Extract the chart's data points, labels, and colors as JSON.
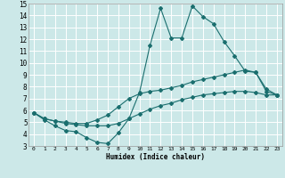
{
  "xlabel": "Humidex (Indice chaleur)",
  "xlim": [
    -0.5,
    23.5
  ],
  "ylim": [
    3,
    15
  ],
  "xticks": [
    0,
    1,
    2,
    3,
    4,
    5,
    6,
    7,
    8,
    9,
    10,
    11,
    12,
    13,
    14,
    15,
    16,
    17,
    18,
    19,
    20,
    21,
    22,
    23
  ],
  "yticks": [
    3,
    4,
    5,
    6,
    7,
    8,
    9,
    10,
    11,
    12,
    13,
    14,
    15
  ],
  "bg_color": "#cce8e8",
  "line_color": "#1a6e6e",
  "grid_color": "#ffffff",
  "line1_x": [
    0,
    1,
    2,
    3,
    4,
    5,
    6,
    7,
    8,
    9,
    10,
    11,
    12,
    13,
    14,
    15,
    16,
    17,
    18,
    19,
    20,
    21,
    22,
    23
  ],
  "line1_y": [
    5.8,
    5.2,
    4.7,
    4.3,
    4.2,
    3.7,
    3.3,
    3.2,
    4.1,
    5.3,
    7.5,
    11.5,
    14.6,
    12.1,
    12.1,
    14.8,
    13.9,
    13.3,
    11.8,
    10.6,
    9.3,
    9.2,
    7.6,
    7.3
  ],
  "line2_x": [
    0,
    1,
    2,
    3,
    4,
    5,
    6,
    7,
    8,
    9,
    10,
    11,
    12,
    13,
    14,
    15,
    16,
    17,
    18,
    19,
    20,
    21,
    22,
    23
  ],
  "line2_y": [
    5.8,
    5.3,
    5.1,
    5.0,
    4.9,
    4.9,
    5.2,
    5.6,
    6.3,
    7.0,
    7.4,
    7.6,
    7.7,
    7.9,
    8.1,
    8.4,
    8.6,
    8.8,
    9.0,
    9.2,
    9.4,
    9.2,
    7.8,
    7.3
  ],
  "line3_x": [
    0,
    1,
    2,
    3,
    4,
    5,
    6,
    7,
    8,
    9,
    10,
    11,
    12,
    13,
    14,
    15,
    16,
    17,
    18,
    19,
    20,
    21,
    22,
    23
  ],
  "line3_y": [
    5.8,
    5.3,
    5.1,
    4.9,
    4.8,
    4.7,
    4.7,
    4.7,
    4.9,
    5.3,
    5.7,
    6.1,
    6.4,
    6.6,
    6.9,
    7.1,
    7.3,
    7.4,
    7.5,
    7.6,
    7.6,
    7.5,
    7.3,
    7.3
  ]
}
